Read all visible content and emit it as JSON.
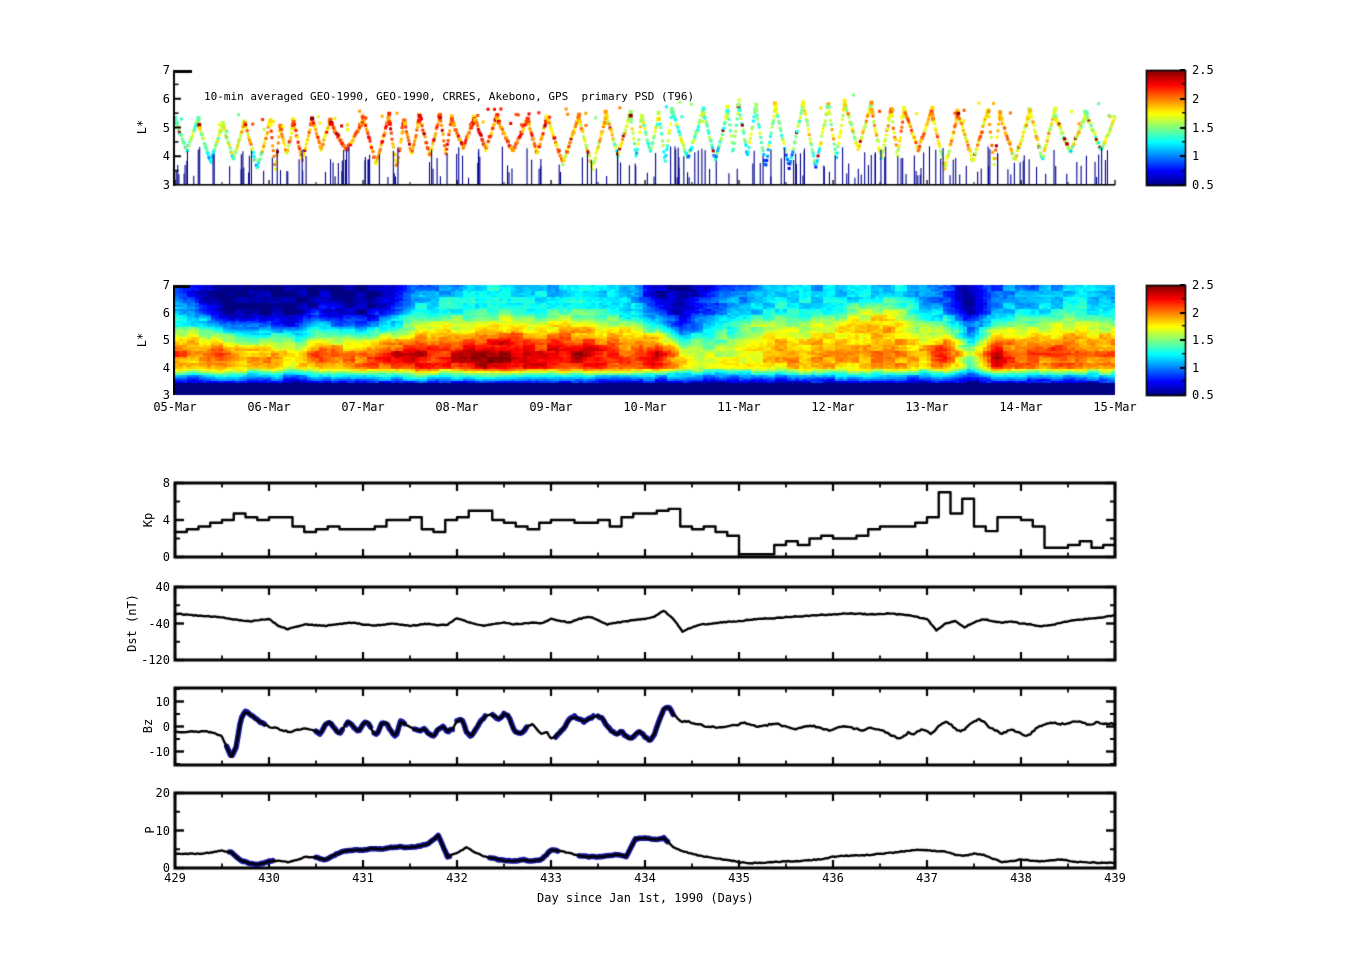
{
  "page": {
    "background": "#ffffff"
  },
  "chart_data": [
    {
      "type": "scatter",
      "title": "10-min averaged GEO-1990, GEO-1990, CRRES, Akebono, GPS  primary PSD (T96)",
      "ylabel": "L*",
      "ylim": [
        3,
        7
      ],
      "yticks": [
        "7",
        "6",
        "5",
        "4",
        "3"
      ],
      "xlim": [
        429,
        439
      ],
      "colorbar": {
        "cmap": "jet",
        "range": [
          0.5,
          2.5
        ],
        "ticks": [
          "2.5",
          "2",
          "1.5",
          "1",
          "0.5"
        ]
      },
      "generation": {
        "seed": 42,
        "baseline_L_by_day": [
          5.2,
          5.15,
          5.3,
          5.35,
          5.3,
          5.45,
          5.65,
          5.85,
          5.5,
          5.55,
          5.45
        ],
        "color_value_by_day": [
          1.45,
          1.9,
          2.05,
          2.1,
          2.05,
          1.6,
          1.45,
          1.7,
          1.9,
          1.85,
          1.5
        ],
        "dip_min_L": 3.6,
        "stub_count": 190,
        "stub_color": "#00008b"
      }
    },
    {
      "type": "heatmap",
      "ylabel": "L*",
      "ylim": [
        3,
        7
      ],
      "yticks": [
        "7",
        "6",
        "5",
        "4",
        "3"
      ],
      "x_tick_labels": [
        "05-Mar",
        "06-Mar",
        "07-Mar",
        "08-Mar",
        "09-Mar",
        "10-Mar",
        "11-Mar",
        "12-Mar",
        "13-Mar",
        "14-Mar",
        "15-Mar"
      ],
      "colorbar": {
        "cmap": "jet",
        "range": [
          0.5,
          2.5
        ],
        "ticks": [
          "2.5",
          "2",
          "1.5",
          "1",
          "0.5"
        ]
      },
      "noise_seed": 7,
      "grid": {
        "L_levels": [
          7.0,
          6.5,
          6.0,
          5.5,
          5.0,
          4.5,
          4.0,
          3.7,
          3.4,
          3.0
        ],
        "values": [
          [
            0.8,
            0.6,
            0.5,
            0.5,
            0.5,
            0.5,
            0.5,
            0.5,
            0.5,
            0.6,
            0.9,
            1.0,
            1.1,
            1.2,
            1.2,
            1.1,
            1.1,
            1.2,
            1.1,
            1.0,
            0.6,
            0.5,
            0.7,
            0.9,
            1.0,
            1.1,
            1.1,
            1.1,
            1.1,
            1.1,
            1.2,
            1.0,
            0.8,
            0.5,
            0.9,
            1.0,
            1.0,
            1.1,
            1.1,
            1.0
          ],
          [
            1.0,
            0.7,
            0.5,
            0.5,
            0.5,
            0.5,
            0.6,
            0.5,
            0.5,
            0.7,
            1.1,
            1.2,
            1.2,
            1.3,
            1.3,
            1.2,
            1.2,
            1.3,
            1.2,
            1.1,
            0.7,
            0.5,
            0.8,
            1.0,
            1.1,
            1.2,
            1.2,
            1.2,
            1.2,
            1.3,
            1.3,
            1.1,
            0.9,
            0.5,
            1.0,
            1.1,
            1.1,
            1.2,
            1.2,
            1.1
          ],
          [
            1.2,
            1.0,
            0.6,
            0.5,
            0.6,
            0.5,
            0.8,
            0.6,
            0.6,
            0.9,
            1.3,
            1.3,
            1.3,
            1.4,
            1.4,
            1.3,
            1.4,
            1.4,
            1.3,
            1.2,
            0.9,
            0.6,
            0.9,
            1.1,
            1.2,
            1.3,
            1.3,
            1.3,
            1.5,
            1.7,
            1.6,
            1.2,
            1.1,
            0.6,
            1.1,
            1.2,
            1.2,
            1.3,
            1.3,
            1.2
          ],
          [
            1.4,
            1.3,
            1.1,
            0.9,
            0.9,
            0.8,
            1.2,
            1.0,
            1.0,
            1.3,
            1.6,
            1.7,
            1.7,
            1.8,
            1.8,
            1.7,
            1.8,
            1.8,
            1.7,
            1.6,
            1.3,
            0.8,
            1.1,
            1.3,
            1.5,
            1.6,
            1.6,
            1.7,
            1.8,
            1.9,
            1.8,
            1.5,
            1.5,
            0.9,
            1.4,
            1.6,
            1.6,
            1.7,
            1.6,
            1.6
          ],
          [
            1.9,
            1.8,
            1.6,
            1.5,
            1.5,
            1.4,
            1.7,
            1.6,
            1.6,
            1.8,
            2.0,
            2.0,
            2.0,
            2.1,
            2.2,
            2.0,
            2.1,
            2.0,
            2.0,
            1.9,
            1.9,
            1.3,
            1.4,
            1.5,
            1.7,
            1.8,
            1.8,
            1.8,
            1.8,
            1.9,
            1.9,
            1.7,
            1.9,
            1.2,
            1.9,
            1.9,
            1.9,
            2.0,
            1.9,
            1.9
          ],
          [
            2.1,
            2.0,
            2.2,
            1.9,
            2.0,
            1.8,
            2.2,
            2.0,
            2.1,
            2.3,
            2.4,
            2.2,
            2.4,
            2.5,
            2.4,
            2.3,
            2.3,
            2.4,
            2.2,
            2.1,
            2.4,
            1.8,
            1.6,
            1.7,
            1.8,
            1.9,
            1.9,
            2.0,
            1.9,
            2.0,
            2.0,
            1.9,
            2.3,
            1.5,
            2.4,
            2.1,
            2.1,
            2.2,
            2.0,
            2.1
          ],
          [
            1.9,
            1.8,
            2.0,
            1.8,
            1.9,
            1.7,
            2.0,
            1.9,
            2.0,
            2.1,
            2.2,
            2.1,
            2.2,
            2.4,
            2.3,
            2.2,
            2.2,
            2.2,
            2.1,
            2.0,
            2.2,
            1.9,
            1.6,
            1.7,
            1.8,
            1.8,
            1.9,
            1.9,
            1.8,
            1.9,
            1.9,
            1.8,
            2.0,
            1.4,
            2.2,
            2.0,
            1.9,
            2.0,
            1.9,
            1.9
          ],
          [
            1.2,
            1.1,
            1.3,
            1.1,
            1.2,
            1.0,
            1.3,
            1.2,
            1.2,
            1.3,
            1.4,
            1.3,
            1.3,
            1.4,
            1.3,
            1.3,
            1.3,
            1.3,
            1.2,
            1.2,
            1.2,
            1.1,
            1.0,
            1.1,
            1.1,
            1.1,
            1.2,
            1.2,
            1.2,
            1.2,
            1.1,
            1.1,
            1.1,
            0.9,
            1.2,
            1.2,
            1.2,
            1.2,
            1.1,
            1.3
          ],
          [
            0.6,
            0.6,
            0.7,
            0.6,
            0.6,
            0.6,
            0.7,
            0.6,
            0.6,
            0.7,
            0.7,
            0.7,
            0.7,
            0.7,
            0.7,
            0.7,
            0.7,
            0.7,
            0.6,
            0.6,
            0.6,
            0.6,
            0.6,
            0.6,
            0.6,
            0.6,
            0.6,
            0.6,
            0.6,
            0.6,
            0.6,
            0.6,
            0.6,
            0.5,
            0.7,
            0.6,
            0.6,
            0.7,
            0.6,
            0.8
          ],
          [
            0.5,
            0.5,
            0.5,
            0.5,
            0.5,
            0.5,
            0.5,
            0.5,
            0.5,
            0.5,
            0.5,
            0.5,
            0.5,
            0.5,
            0.5,
            0.5,
            0.5,
            0.5,
            0.5,
            0.5,
            0.5,
            0.5,
            0.5,
            0.5,
            0.5,
            0.5,
            0.5,
            0.5,
            0.5,
            0.5,
            0.5,
            0.5,
            0.5,
            0.5,
            0.5,
            0.5,
            0.5,
            0.5,
            0.5,
            0.5
          ]
        ]
      }
    },
    {
      "type": "line",
      "name": "Kp",
      "ylabel": "Kp",
      "ylim": [
        0,
        8
      ],
      "yticks_major": [
        {
          "label": "8",
          "v": 8
        },
        {
          "label": "4",
          "v": 4
        },
        {
          "label": "0",
          "v": 0
        }
      ],
      "yticks_minor": [
        2,
        6
      ],
      "step": true,
      "x_start": 429,
      "x_step": 0.125,
      "values": [
        2.7,
        3.0,
        3.3,
        3.7,
        4.0,
        4.7,
        4.3,
        4.0,
        4.3,
        4.3,
        3.3,
        2.7,
        3.0,
        3.3,
        3.0,
        3.0,
        3.0,
        3.3,
        4.0,
        4.0,
        4.3,
        3.0,
        2.7,
        4.0,
        4.3,
        5.0,
        5.0,
        4.0,
        3.7,
        3.3,
        3.0,
        3.7,
        4.0,
        4.0,
        3.7,
        3.7,
        4.0,
        3.3,
        4.3,
        4.7,
        4.7,
        5.0,
        5.2,
        3.3,
        3.0,
        3.3,
        2.7,
        2.3,
        0.3,
        0.3,
        0.3,
        1.3,
        1.7,
        1.3,
        2.0,
        2.3,
        2.0,
        2.0,
        2.3,
        3.0,
        3.3,
        3.3,
        3.3,
        3.7,
        4.3,
        7.0,
        4.7,
        6.3,
        3.3,
        2.8,
        4.3,
        4.3,
        4.0,
        3.3,
        1.0,
        1.0,
        1.3,
        1.7,
        1.0,
        1.3,
        1.3
      ]
    },
    {
      "type": "line",
      "name": "Dst",
      "ylabel": "Dst (nT)",
      "ylim": [
        -120,
        40
      ],
      "yticks_major": [
        {
          "label": "40",
          "v": 40
        },
        {
          "label": "-40",
          "v": -40
        },
        {
          "label": "-120",
          "v": -120
        }
      ],
      "yticks_minor": [
        0,
        -80
      ],
      "step": false,
      "x_start": 429,
      "x_step": 0.1,
      "jitter": 2.0,
      "values": [
        -18,
        -20,
        -22,
        -24,
        -25,
        -26,
        -30,
        -33,
        -35,
        -32,
        -30,
        -45,
        -52,
        -46,
        -42,
        -44,
        -45,
        -42,
        -40,
        -38,
        -42,
        -44,
        -43,
        -40,
        -42,
        -45,
        -43,
        -40,
        -44,
        -42,
        -28,
        -35,
        -42,
        -45,
        -40,
        -38,
        -42,
        -40,
        -38,
        -40,
        -30,
        -34,
        -38,
        -30,
        -25,
        -32,
        -42,
        -38,
        -35,
        -32,
        -30,
        -25,
        -12,
        -30,
        -58,
        -48,
        -42,
        -40,
        -38,
        -36,
        -35,
        -32,
        -30,
        -29,
        -28,
        -26,
        -25,
        -24,
        -22,
        -21,
        -20,
        -19,
        -18,
        -19,
        -20,
        -19,
        -18,
        -20,
        -22,
        -26,
        -30,
        -55,
        -40,
        -35,
        -48,
        -38,
        -30,
        -35,
        -38,
        -36,
        -40,
        -42,
        -46,
        -44,
        -40,
        -35,
        -32,
        -30,
        -28,
        -25,
        -22
      ]
    },
    {
      "type": "line",
      "name": "Bz",
      "ylabel": "Bz",
      "ylim": [
        -15.4,
        15.4
      ],
      "yticks_major": [
        {
          "label": "10",
          "v": 10
        },
        {
          "label": "0",
          "v": 0
        },
        {
          "label": "-10",
          "v": -10
        }
      ],
      "yticks_minor": [
        15,
        5,
        -5,
        -15
      ],
      "step": false,
      "x_start": 429,
      "x_step": 0.05,
      "jitter": 0.7,
      "overlay_color": "#14149a",
      "overlay_segments": [
        [
          429.55,
          429.95
        ],
        [
          430.5,
          430.78
        ],
        [
          430.82,
          431.08
        ],
        [
          431.12,
          431.45
        ],
        [
          431.55,
          431.95
        ],
        [
          432.0,
          432.3
        ],
        [
          432.38,
          432.75
        ],
        [
          433.05,
          433.45
        ],
        [
          433.5,
          434.3
        ]
      ],
      "values": [
        -2,
        -2,
        -2,
        -2,
        -2.2,
        -2,
        -1.8,
        -2,
        -2.5,
        -3,
        -4,
        -8,
        -12,
        -8,
        3,
        6,
        5,
        3.5,
        2,
        1,
        0,
        -0.5,
        -1,
        -1.5,
        -2,
        -2,
        -1.5,
        -1,
        -1,
        -1.5,
        -2,
        -3,
        1,
        2,
        -1,
        -3,
        0,
        2,
        0,
        -2,
        1,
        2,
        -2,
        -3,
        1,
        1.5,
        -2,
        -4,
        2,
        1,
        0,
        -1,
        -2,
        -1,
        -3,
        -4,
        -1,
        0,
        -2,
        -1,
        2,
        3,
        -2,
        -4,
        -1,
        2,
        4,
        5,
        4,
        3,
        5,
        4,
        -1,
        -3,
        -2,
        0,
        1,
        -1,
        -3,
        -2,
        -5,
        -4,
        -2,
        0,
        3,
        4,
        3,
        2,
        3,
        4,
        4,
        3,
        0,
        -2,
        -3,
        -2,
        -4,
        -5,
        -3,
        -2,
        -4,
        -6,
        -3,
        2,
        7,
        8,
        5,
        3,
        2,
        2,
        1.5,
        1,
        0.5,
        0,
        0,
        -0.5,
        -0.5,
        0,
        0.5,
        0.5,
        1,
        1.5,
        1,
        0.5,
        0,
        0,
        0.5,
        1,
        1,
        0.5,
        0,
        -0.5,
        -1,
        -0.5,
        0,
        0.5,
        0,
        -0.5,
        -1,
        -1.5,
        -1,
        -0.5,
        0,
        0,
        -0.5,
        -1,
        -1.5,
        -1,
        -0.5,
        -1,
        -1.5,
        -2,
        -3,
        -4,
        -5,
        -4,
        -2.5,
        -3.5,
        -2,
        -1,
        -2,
        -3,
        -1,
        1,
        2,
        1,
        -1,
        -2,
        -1,
        1,
        2,
        3,
        2,
        0,
        -1,
        -2,
        -3,
        -2,
        -1,
        -2,
        -3,
        -4,
        -3,
        -1,
        0,
        1,
        1.5,
        1.5,
        1,
        1,
        1.5,
        2,
        2,
        1.5,
        1,
        1,
        1.5,
        1.5,
        1,
        1.2,
        1
      ]
    },
    {
      "type": "line",
      "name": "P",
      "ylabel": "P",
      "ylim": [
        0,
        20
      ],
      "yticks_major": [
        {
          "label": "20",
          "v": 20
        },
        {
          "label": "10",
          "v": 10
        },
        {
          "label": "0",
          "v": 0
        }
      ],
      "yticks_minor": [
        15,
        5
      ],
      "step": false,
      "x_start": 429,
      "x_step": 0.1,
      "jitter": 0.25,
      "overlay_color": "#14149a",
      "overlay_segments": [
        [
          429.58,
          430.05
        ],
        [
          430.5,
          431.92
        ],
        [
          432.35,
          433.08
        ],
        [
          433.3,
          434.25
        ]
      ],
      "xticks": [
        "429",
        "430",
        "431",
        "432",
        "433",
        "434",
        "435",
        "436",
        "437",
        "438",
        "439"
      ],
      "xlabel": "Day since Jan 1st, 1990 (Days)",
      "values": [
        3.8,
        3.8,
        3.8,
        3.9,
        4.2,
        4.6,
        4.2,
        2.0,
        1.2,
        1.0,
        1.8,
        2.0,
        1.5,
        2.2,
        3.0,
        2.8,
        2.2,
        3.5,
        4.5,
        4.8,
        4.8,
        5.2,
        5.0,
        5.5,
        5.6,
        5.5,
        5.8,
        6.5,
        8.7,
        3.0,
        4.0,
        5.5,
        4.0,
        3.0,
        2.5,
        2.0,
        1.8,
        2.2,
        1.8,
        2.3,
        4.8,
        4.5,
        4.0,
        3.3,
        3.0,
        3.0,
        3.2,
        3.6,
        3.0,
        7.8,
        8.0,
        7.6,
        8.0,
        5.5,
        4.5,
        3.8,
        3.2,
        2.8,
        2.4,
        2.0,
        1.6,
        1.2,
        1.4,
        1.5,
        1.6,
        1.8,
        1.8,
        2.0,
        2.2,
        2.4,
        3.0,
        3.2,
        3.3,
        3.4,
        3.5,
        3.8,
        4.0,
        4.3,
        4.6,
        4.8,
        4.7,
        4.5,
        4.4,
        3.5,
        3.3,
        3.8,
        3.6,
        2.5,
        1.6,
        1.8,
        2.3,
        2.0,
        1.8,
        2.0,
        2.3,
        2.0,
        1.6,
        1.5,
        1.4,
        1.4,
        1.4
      ]
    }
  ],
  "style_colors": {
    "line": "#000000",
    "overlay": "#14149a",
    "stub": "#00008b",
    "background": "#ffffff"
  }
}
